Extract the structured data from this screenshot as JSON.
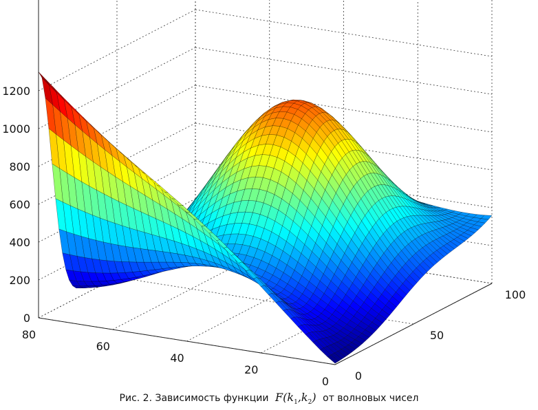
{
  "chart_data": {
    "type": "surface",
    "title": "",
    "xlabel": "",
    "ylabel": "",
    "zlabel": "",
    "x_axis": {
      "range": [
        0,
        80
      ],
      "ticks": [
        "0",
        "20",
        "40",
        "60",
        "80"
      ]
    },
    "y_axis": {
      "range": [
        0,
        100
      ],
      "ticks": [
        "0",
        "50",
        "100"
      ]
    },
    "z_axis": {
      "range": [
        0,
        1200
      ],
      "ticks": [
        "0",
        "200",
        "400",
        "600",
        "800",
        "1000",
        "1200"
      ]
    },
    "grid": true,
    "colormap": "jet",
    "surface_landmarks": [
      {
        "x": 80,
        "y": 0,
        "z": 1290
      },
      {
        "x": 80,
        "y": 100,
        "z": 330
      },
      {
        "x": 78,
        "y": 100,
        "z": 325
      },
      {
        "x": 36,
        "y": 57,
        "z": 950
      },
      {
        "x": 40,
        "y": 28,
        "z": 270
      },
      {
        "x": 0,
        "y": 100,
        "z": 500
      },
      {
        "x": 0,
        "y": 0,
        "z": 0
      }
    ],
    "colors": {
      "low": "#00008f",
      "mid": "#00ffff",
      "high": "#ffff00",
      "max": "#b00000"
    }
  },
  "caption": {
    "prefix": "Рис. 2. Зависимость функции",
    "func": "F",
    "var1": "k",
    "sub1": "1",
    "var2": "k",
    "sub2": "2",
    "suffix": "от волновых чисел"
  }
}
